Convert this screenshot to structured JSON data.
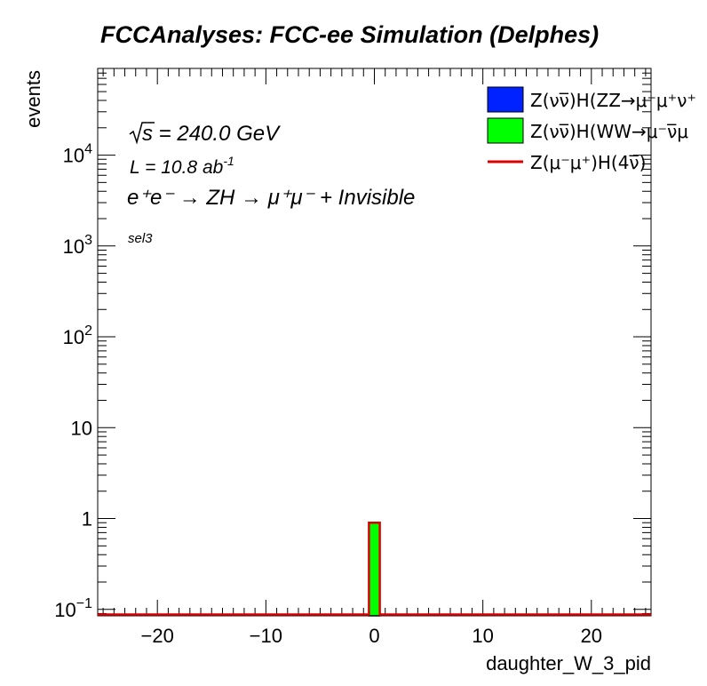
{
  "chart_data": {
    "type": "bar",
    "title": "FCCAnalyses: FCC-ee Simulation (Delphes)",
    "xlabel": "daughter_W_3_pid",
    "ylabel": "events",
    "xlim": [
      -25.5,
      25.5
    ],
    "ylim": [
      0.085,
      90000
    ],
    "y_scale": "log",
    "x_ticks": [
      {
        "value": -20,
        "label": "−20"
      },
      {
        "value": -10,
        "label": "−10"
      },
      {
        "value": 0,
        "label": "0"
      },
      {
        "value": 10,
        "label": "10"
      },
      {
        "value": 20,
        "label": "20"
      }
    ],
    "y_ticks": [
      {
        "value": 0.1,
        "base": "10",
        "exp": "−1"
      },
      {
        "value": 1,
        "base": "1",
        "exp": ""
      },
      {
        "value": 10,
        "base": "10",
        "exp": ""
      },
      {
        "value": 100,
        "base": "10",
        "exp": "2"
      },
      {
        "value": 1000,
        "base": "10",
        "exp": "3"
      },
      {
        "value": 10000,
        "base": "10",
        "exp": "4"
      }
    ],
    "annotations": {
      "sqrt_s": "s",
      "energy": " = 240.0 GeV",
      "lumi_prefix": "L = 10.8 ab",
      "lumi_exp": "-1",
      "process": "e⁺e⁻ → ZH → μ⁺μ⁻ + Invisible",
      "selection": "sel3"
    },
    "legend_position": "top-right",
    "series": [
      {
        "name": "Z(νν̅)H(ZZ→μ⁻μ⁺ν⁺",
        "kind": "stack",
        "color": "#0022ff",
        "bins": []
      },
      {
        "name": "Z(νν̅)H(WW→μ⁻ν̅μ",
        "kind": "stack",
        "color": "#00ff00",
        "bins": [
          {
            "x0": -0.5,
            "x1": 0.5,
            "value": 0.9
          }
        ]
      },
      {
        "name": "Z(μ⁻μ⁺)H(4ν̅)",
        "kind": "line",
        "color": "#dd0000",
        "bins": []
      }
    ]
  }
}
